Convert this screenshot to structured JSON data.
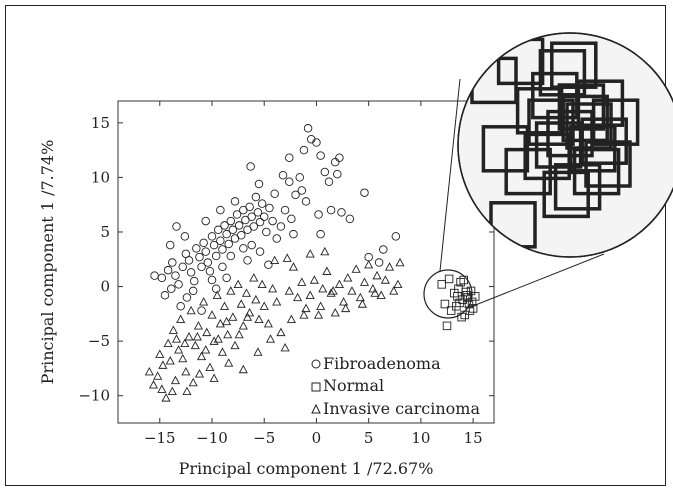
{
  "chart_data": {
    "type": "scatter",
    "xlabel": "Principal component 1 /72.67%",
    "ylabel": "Principal component 1 /7.74%",
    "xlim": [
      -19,
      17
    ],
    "ylim": [
      -12.5,
      17
    ],
    "xticks": [
      -15,
      -10,
      -5,
      0,
      5,
      10,
      15
    ],
    "yticks": [
      15,
      10,
      5,
      0,
      -5,
      -10
    ],
    "legend_position": "bottom-right",
    "inset": {
      "type": "magnified-view",
      "region_x": [
        11.5,
        16.5
      ],
      "region_y": [
        -4.5,
        1.5
      ]
    },
    "series": [
      {
        "name": "Fibroadenoma",
        "marker": "circle",
        "points": [
          [
            -14.8,
            0.8
          ],
          [
            -14.2,
            1.5
          ],
          [
            -13.8,
            2.2
          ],
          [
            -13.5,
            1.0
          ],
          [
            -13.2,
            0.2
          ],
          [
            -12.8,
            1.8
          ],
          [
            -12.5,
            3.0
          ],
          [
            -12.2,
            2.4
          ],
          [
            -12.0,
            1.3
          ],
          [
            -11.7,
            0.5
          ],
          [
            -11.5,
            3.5
          ],
          [
            -11.2,
            2.7
          ],
          [
            -11.0,
            1.8
          ],
          [
            -10.8,
            4.0
          ],
          [
            -10.6,
            3.2
          ],
          [
            -10.4,
            2.2
          ],
          [
            -10.2,
            1.4
          ],
          [
            -10.0,
            4.6
          ],
          [
            -9.8,
            3.8
          ],
          [
            -9.6,
            2.8
          ],
          [
            -9.4,
            5.2
          ],
          [
            -9.2,
            4.2
          ],
          [
            -9.0,
            3.4
          ],
          [
            -8.8,
            5.6
          ],
          [
            -8.6,
            4.8
          ],
          [
            -8.4,
            3.9
          ],
          [
            -8.2,
            6.0
          ],
          [
            -8.0,
            5.2
          ],
          [
            -7.8,
            4.4
          ],
          [
            -7.6,
            6.6
          ],
          [
            -7.4,
            5.6
          ],
          [
            -7.2,
            4.7
          ],
          [
            -7.0,
            7.0
          ],
          [
            -6.8,
            6.1
          ],
          [
            -6.6,
            5.2
          ],
          [
            -6.4,
            7.3
          ],
          [
            -6.2,
            6.4
          ],
          [
            -6.0,
            5.5
          ],
          [
            -5.8,
            8.2
          ],
          [
            -5.6,
            6.8
          ],
          [
            -5.4,
            5.9
          ],
          [
            -5.2,
            7.6
          ],
          [
            -5.0,
            6.4
          ],
          [
            -4.8,
            5.0
          ],
          [
            -4.5,
            7.2
          ],
          [
            -4.2,
            6.0
          ],
          [
            -3.8,
            4.4
          ],
          [
            -6.3,
            11.0
          ],
          [
            -4.0,
            8.5
          ],
          [
            -5.5,
            9.4
          ],
          [
            -3.2,
            10.2
          ],
          [
            -2.6,
            9.6
          ],
          [
            -2.0,
            8.4
          ],
          [
            -1.6,
            10.0
          ],
          [
            -1.2,
            12.5
          ],
          [
            -0.8,
            14.5
          ],
          [
            -0.5,
            13.5
          ],
          [
            0.0,
            13.2
          ],
          [
            0.4,
            12.0
          ],
          [
            0.8,
            10.5
          ],
          [
            1.2,
            9.6
          ],
          [
            1.8,
            11.4
          ],
          [
            2.2,
            11.8
          ],
          [
            2.0,
            10.3
          ],
          [
            0.2,
            6.6
          ],
          [
            -1.0,
            7.8
          ],
          [
            -2.4,
            6.2
          ],
          [
            2.4,
            6.8
          ],
          [
            3.2,
            6.2
          ],
          [
            4.6,
            8.6
          ],
          [
            5.0,
            2.7
          ],
          [
            6.4,
            3.4
          ],
          [
            7.6,
            4.6
          ],
          [
            6.0,
            2.2
          ],
          [
            0.4,
            4.8
          ],
          [
            -2.2,
            4.8
          ],
          [
            -3.4,
            5.5
          ],
          [
            -13.4,
            5.5
          ],
          [
            -12.6,
            4.6
          ],
          [
            -14.0,
            3.8
          ],
          [
            -11.8,
            -0.4
          ],
          [
            -10.0,
            0.6
          ],
          [
            -9.0,
            1.8
          ],
          [
            -8.2,
            2.8
          ],
          [
            -12.4,
            -1.0
          ],
          [
            -13.9,
            -0.2
          ],
          [
            -7.0,
            3.5
          ],
          [
            -6.6,
            2.4
          ],
          [
            -15.5,
            1.0
          ],
          [
            -14.5,
            -0.8
          ],
          [
            -13.0,
            -1.8
          ],
          [
            -11.0,
            -2.2
          ],
          [
            -9.6,
            -0.2
          ],
          [
            -8.6,
            0.8
          ],
          [
            -10.6,
            6.0
          ],
          [
            -9.2,
            7.0
          ],
          [
            -7.8,
            7.8
          ],
          [
            -6.2,
            3.8
          ],
          [
            -5.4,
            3.2
          ],
          [
            -4.6,
            2.0
          ],
          [
            -3.0,
            7.0
          ],
          [
            -2.6,
            11.8
          ],
          [
            -1.4,
            8.8
          ],
          [
            1.4,
            7.0
          ]
        ]
      },
      {
        "name": "Normal",
        "marker": "square",
        "points": [
          [
            12.0,
            0.2
          ],
          [
            12.3,
            -1.6
          ],
          [
            12.5,
            -3.6
          ],
          [
            12.7,
            0.7
          ],
          [
            12.9,
            -2.2
          ],
          [
            13.2,
            -0.6
          ],
          [
            13.4,
            -1.8
          ],
          [
            13.6,
            -0.2
          ],
          [
            13.8,
            0.4
          ],
          [
            14.0,
            -1.2
          ],
          [
            14.2,
            -2.6
          ],
          [
            14.4,
            -0.8
          ],
          [
            14.6,
            -1.6
          ],
          [
            14.8,
            -0.4
          ],
          [
            15.0,
            -2.0
          ],
          [
            13.9,
            -2.8
          ],
          [
            14.1,
            0.6
          ],
          [
            14.5,
            -1.0
          ],
          [
            14.9,
            -1.4
          ],
          [
            15.2,
            -0.9
          ],
          [
            13.7,
            -1.5
          ],
          [
            14.3,
            -0.5
          ],
          [
            14.7,
            -2.2
          ],
          [
            13.5,
            -0.9
          ]
        ]
      },
      {
        "name": "Invasive carcinoma",
        "marker": "triangle",
        "points": [
          [
            -16.0,
            -7.8
          ],
          [
            -15.6,
            -9.0
          ],
          [
            -15.2,
            -8.2
          ],
          [
            -15.0,
            -6.2
          ],
          [
            -14.7,
            -7.2
          ],
          [
            -14.4,
            -10.2
          ],
          [
            -14.2,
            -5.2
          ],
          [
            -14.0,
            -6.8
          ],
          [
            -13.7,
            -4.0
          ],
          [
            -13.5,
            -8.6
          ],
          [
            -13.2,
            -5.8
          ],
          [
            -13.0,
            -3.0
          ],
          [
            -12.8,
            -6.6
          ],
          [
            -12.5,
            -7.8
          ],
          [
            -12.2,
            -4.6
          ],
          [
            -12.0,
            -2.2
          ],
          [
            -11.8,
            -8.8
          ],
          [
            -11.6,
            -5.4
          ],
          [
            -11.3,
            -3.6
          ],
          [
            -11.0,
            -6.4
          ],
          [
            -10.8,
            -1.4
          ],
          [
            -10.5,
            -4.2
          ],
          [
            -10.2,
            -7.4
          ],
          [
            -10.0,
            -2.6
          ],
          [
            -9.8,
            -5.0
          ],
          [
            -9.5,
            -0.8
          ],
          [
            -9.2,
            -3.4
          ],
          [
            -9.0,
            -6.0
          ],
          [
            -8.8,
            -1.8
          ],
          [
            -8.5,
            -4.4
          ],
          [
            -8.2,
            -0.4
          ],
          [
            -8.0,
            -2.8
          ],
          [
            -7.8,
            -5.4
          ],
          [
            -7.5,
            0.2
          ],
          [
            -7.2,
            -1.6
          ],
          [
            -7.0,
            -3.6
          ],
          [
            -6.7,
            -0.6
          ],
          [
            -6.4,
            -2.4
          ],
          [
            -6.0,
            0.8
          ],
          [
            -5.8,
            -1.2
          ],
          [
            -5.5,
            -3.0
          ],
          [
            -5.2,
            0.2
          ],
          [
            -5.0,
            -1.8
          ],
          [
            -4.6,
            -3.4
          ],
          [
            -4.2,
            -0.2
          ],
          [
            -3.8,
            -1.4
          ],
          [
            -3.4,
            -4.2
          ],
          [
            -3.0,
            -5.6
          ],
          [
            -2.6,
            -0.4
          ],
          [
            -2.2,
            1.8
          ],
          [
            -1.8,
            -1.0
          ],
          [
            -1.4,
            0.4
          ],
          [
            -1.0,
            -2.0
          ],
          [
            -0.6,
            -0.8
          ],
          [
            -0.2,
            0.6
          ],
          [
            0.2,
            -2.6
          ],
          [
            0.6,
            -0.2
          ],
          [
            1.0,
            1.4
          ],
          [
            1.4,
            -0.6
          ],
          [
            1.8,
            -2.4
          ],
          [
            2.2,
            0.2
          ],
          [
            2.6,
            -1.4
          ],
          [
            3.0,
            0.8
          ],
          [
            3.4,
            -0.4
          ],
          [
            3.8,
            1.6
          ],
          [
            4.2,
            -1.0
          ],
          [
            4.6,
            0.4
          ],
          [
            5.0,
            2.0
          ],
          [
            5.4,
            -0.2
          ],
          [
            5.8,
            1.0
          ],
          [
            6.2,
            -0.8
          ],
          [
            6.6,
            0.6
          ],
          [
            7.0,
            1.8
          ],
          [
            7.4,
            -0.4
          ],
          [
            7.8,
            0.2
          ],
          [
            8.0,
            2.2
          ],
          [
            -4.0,
            2.4
          ],
          [
            -2.8,
            2.6
          ],
          [
            -0.6,
            3.0
          ],
          [
            0.8,
            3.2
          ],
          [
            -13.4,
            -4.8
          ],
          [
            -12.6,
            -5.2
          ],
          [
            -11.4,
            -4.6
          ],
          [
            -10.6,
            -5.8
          ],
          [
            -9.4,
            -4.8
          ],
          [
            -8.6,
            -3.2
          ],
          [
            -7.4,
            -4.4
          ],
          [
            -6.6,
            -2.8
          ],
          [
            -14.8,
            -9.4
          ],
          [
            -13.8,
            -9.6
          ],
          [
            -12.4,
            -9.6
          ],
          [
            -11.2,
            -8.0
          ],
          [
            -9.8,
            -8.4
          ],
          [
            -8.4,
            -7.0
          ],
          [
            -7.0,
            -7.6
          ],
          [
            -5.6,
            -6.0
          ],
          [
            -4.4,
            -4.8
          ],
          [
            -2.4,
            -3.0
          ],
          [
            -1.2,
            -2.6
          ],
          [
            0.4,
            -1.8
          ],
          [
            1.6,
            -0.4
          ],
          [
            2.8,
            -2.0
          ],
          [
            4.4,
            -1.6
          ],
          [
            5.6,
            -0.6
          ]
        ]
      }
    ]
  }
}
